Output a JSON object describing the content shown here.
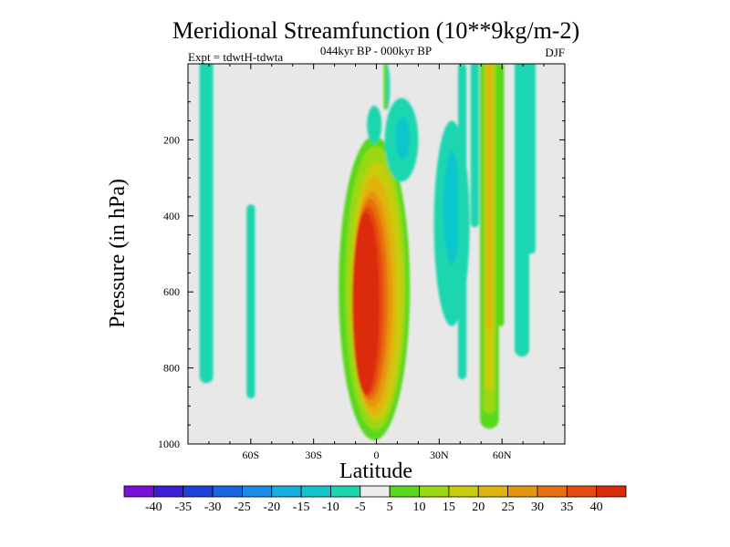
{
  "chart_data": {
    "type": "heatmap",
    "title": "Meridional Streamfunction (10**9kg/m-2)",
    "subtitle": "044kyr BP - 000kyr BP",
    "left_string": "Expt = tdwtH-tdwta",
    "right_string": "DJF",
    "xlabel": "Latitude",
    "ylabel": "Pressure (in hPa)",
    "xlim": [
      -90,
      90
    ],
    "ylim": [
      0,
      1000
    ],
    "y_reversed": true,
    "x_ticks": [
      {
        "value": -60,
        "label": "60S"
      },
      {
        "value": -30,
        "label": "30S"
      },
      {
        "value": 0,
        "label": "0"
      },
      {
        "value": 30,
        "label": "30N"
      },
      {
        "value": 60,
        "label": "60N"
      }
    ],
    "y_ticks": [
      {
        "value": 200,
        "label": "200"
      },
      {
        "value": 400,
        "label": "400"
      },
      {
        "value": 600,
        "label": "600"
      },
      {
        "value": 800,
        "label": "800"
      },
      {
        "value": 1000,
        "label": "1000"
      }
    ],
    "background_color": "#e8e8e8",
    "colorbar": {
      "levels": [
        "-40",
        "-35",
        "-30",
        "-25",
        "-20",
        "-15",
        "-10",
        "-5",
        "5",
        "10",
        "15",
        "20",
        "25",
        "30",
        "35",
        "40"
      ],
      "colors": [
        "#7a10d8",
        "#3a1fd6",
        "#1e3fd8",
        "#1a66e0",
        "#1a8ce8",
        "#15aee0",
        "#10c6cc",
        "#1ad6b0",
        "#ececec",
        "#5ad81e",
        "#9ad812",
        "#c8cc0a",
        "#e0b40a",
        "#e6960e",
        "#e67010",
        "#e64a10",
        "#dc2a0a"
      ]
    },
    "features": [
      {
        "name": "strong-positive-cell-equator",
        "x_range": [
          -17,
          16
        ],
        "p_range": [
          190,
          985
        ],
        "peak": 40
      },
      {
        "name": "negative-cell-south-polar",
        "x_range": [
          -84,
          -78
        ],
        "p_range": [
          0,
          840
        ],
        "peak": -10
      },
      {
        "name": "negative-cell-south-60",
        "x_range": [
          -62,
          -58
        ],
        "p_range": [
          370,
          880
        ],
        "peak": -10
      },
      {
        "name": "negative-cell-north-30",
        "x_range": [
          28,
          44
        ],
        "p_range": [
          180,
          600
        ],
        "peak": -15
      },
      {
        "name": "negative-cell-upper-equator",
        "x_range": [
          -3,
          22
        ],
        "p_range": [
          70,
          290
        ],
        "peak": -15
      },
      {
        "name": "positive-band-north-55",
        "x_range": [
          51,
          58
        ],
        "p_range": [
          0,
          950
        ],
        "peak": 20
      },
      {
        "name": "negative-band-north-70",
        "x_range": [
          67,
          76
        ],
        "p_range": [
          0,
          770
        ],
        "peak": -10
      }
    ]
  }
}
